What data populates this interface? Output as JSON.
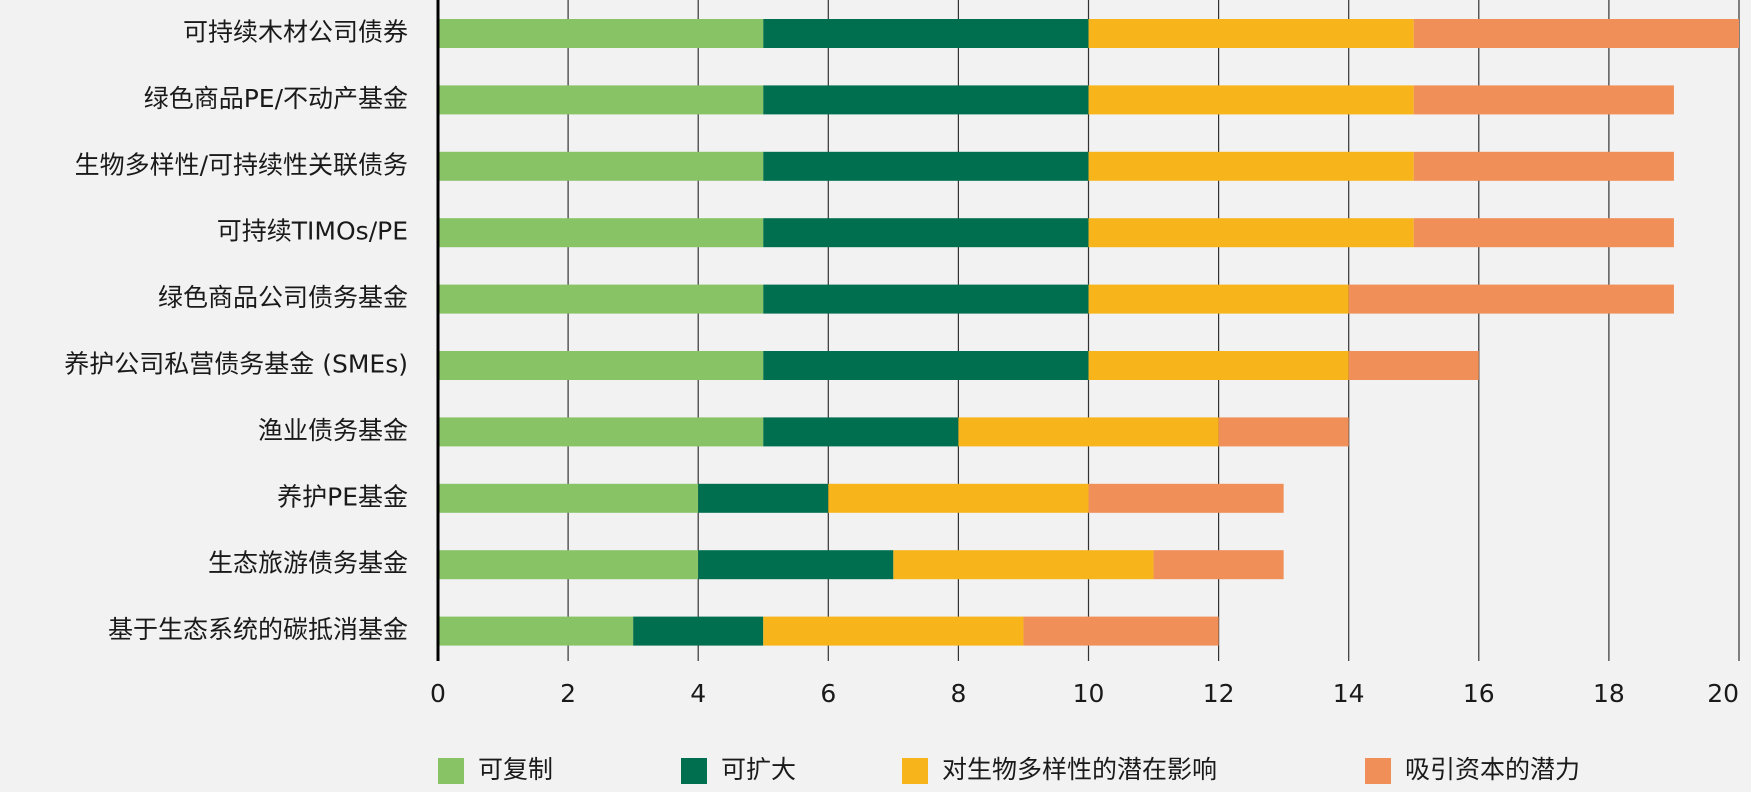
{
  "chart_data": {
    "type": "stacked-bar-horizontal",
    "categories": [
      "可持续木材公司债券",
      "绿色商品PE/不动产基金",
      "生物多样性/可持续性关联债务",
      "可持续TIMOs/PE",
      "绿色商品公司债务基金",
      "养护公司私营债务基金 (SMEs)",
      "渔业债务基金",
      "养护PE基金",
      "生态旅游债务基金",
      "基于生态系统的碳抵消基金"
    ],
    "series": [
      {
        "name": "可复制",
        "color": "#88c466",
        "values": [
          5,
          5,
          5,
          5,
          5,
          5,
          5,
          4,
          4,
          3
        ]
      },
      {
        "name": "可扩大",
        "color": "#006f4f",
        "values": [
          5,
          5,
          5,
          5,
          5,
          5,
          3,
          2,
          3,
          2
        ]
      },
      {
        "name": "对生物多样性的潜在影响",
        "color": "#f8b41b",
        "values": [
          5,
          5,
          5,
          5,
          4,
          4,
          4,
          4,
          4,
          4
        ]
      },
      {
        "name": "吸引资本的潜力",
        "color": "#f08f58",
        "values": [
          5,
          4,
          4,
          4,
          5,
          2,
          2,
          3,
          2,
          3
        ]
      }
    ],
    "xlim": [
      0,
      20
    ],
    "xticks": [
      0,
      2,
      4,
      6,
      8,
      10,
      12,
      14,
      16,
      18,
      20
    ],
    "grid": true
  }
}
